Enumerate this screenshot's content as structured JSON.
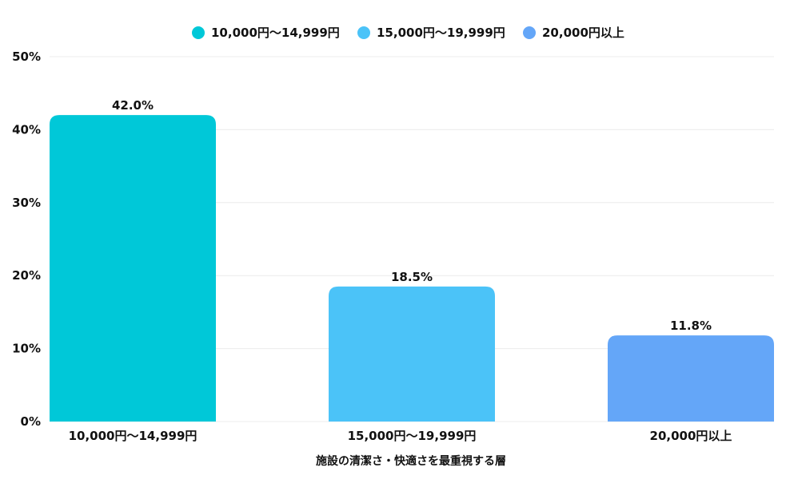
{
  "chart_data": {
    "type": "bar",
    "categories": [
      "10,000円～14,999円",
      "15,000円～19,999円",
      "20,000円以上"
    ],
    "values": [
      42.0,
      18.5,
      11.8
    ],
    "value_labels": [
      "42.0%",
      "18.5%",
      "11.8%"
    ],
    "colors": [
      "#00C8D8",
      "#4BC3F8",
      "#64A6F8"
    ],
    "xlabel": "施設の清潔さ・快適さを最重視する層",
    "ylabel": "",
    "ylim": [
      0,
      50
    ],
    "yticks": [
      0,
      10,
      20,
      30,
      40,
      50
    ],
    "ytick_labels": [
      "0%",
      "10%",
      "20%",
      "30%",
      "40%",
      "50%"
    ],
    "legend": {
      "position": "top",
      "entries": [
        "10,000円～14,999円",
        "15,000円～19,999円",
        "20,000円以上"
      ]
    },
    "grid": true
  }
}
